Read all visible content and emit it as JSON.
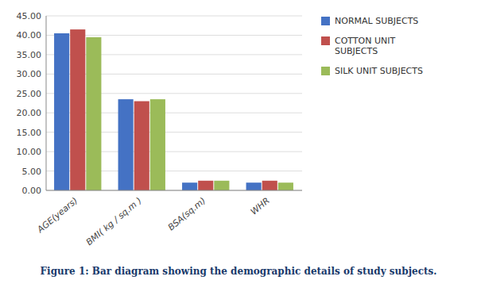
{
  "chart_data": {
    "type": "bar",
    "title": "Figure 1: Bar diagram showing the demographic details of study subjects.",
    "categories": [
      "AGE(years)",
      "BMI( kg / sq.m )",
      "BSA(sq.m)",
      "WHR"
    ],
    "series": [
      {
        "name": "NORMAL SUBJECTS",
        "color": "#4472C4",
        "values": [
          40.5,
          23.5,
          2.0,
          2.0
        ]
      },
      {
        "name": "COTTON UNIT\nSUBJECTS",
        "color": "#C0504D",
        "values": [
          41.5,
          23.0,
          2.5,
          2.5
        ]
      },
      {
        "name": "SILK UNIT SUBJECTS",
        "color": "#9BBB59",
        "values": [
          39.5,
          23.5,
          2.5,
          2.0
        ]
      }
    ],
    "ylim": [
      0,
      45
    ],
    "yticks": [
      {
        "value": 0.0,
        "label": "0.00"
      },
      {
        "value": 5.0,
        "label": "5.00"
      },
      {
        "value": 10.0,
        "label": "10.00"
      },
      {
        "value": 15.0,
        "label": "15.00"
      },
      {
        "value": 20.0,
        "label": "20.00"
      },
      {
        "value": 25.0,
        "label": "25.00"
      },
      {
        "value": 30.0,
        "label": "30.00"
      },
      {
        "value": 35.0,
        "label": "35.00"
      },
      {
        "value": 40.0,
        "label": "40.00"
      },
      {
        "value": 45.0,
        "label": "45.00"
      }
    ],
    "grid": true,
    "legend": "right"
  }
}
